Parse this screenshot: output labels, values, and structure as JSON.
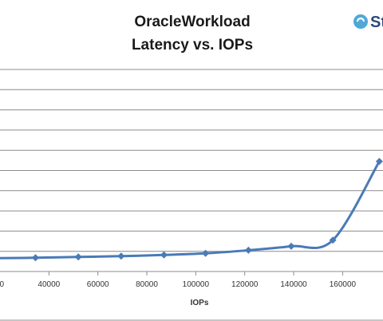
{
  "chart_data": {
    "type": "line",
    "title": [
      "OracleWorkload",
      "Latency vs. IOPs"
    ],
    "xlabel": "IOPs",
    "ylabel": "",
    "x_ticks": [
      40000,
      60000,
      80000,
      100000,
      120000,
      140000,
      160000
    ],
    "xlim": [
      20000,
      176500
    ],
    "ylim": [
      0,
      10
    ],
    "y_gridlines": [
      1,
      2,
      3,
      4,
      5,
      6,
      7,
      8,
      9
    ],
    "grid": true,
    "legend": "none",
    "series": [
      {
        "color": "#4a7ab8",
        "x": [
          34500,
          52000,
          69500,
          87000,
          104000,
          121500,
          139000,
          156000,
          175000
        ],
        "y": [
          0.68,
          0.72,
          0.76,
          0.82,
          0.9,
          1.05,
          1.25,
          1.55,
          5.45
        ]
      }
    ]
  },
  "logo": {
    "text": "St"
  }
}
